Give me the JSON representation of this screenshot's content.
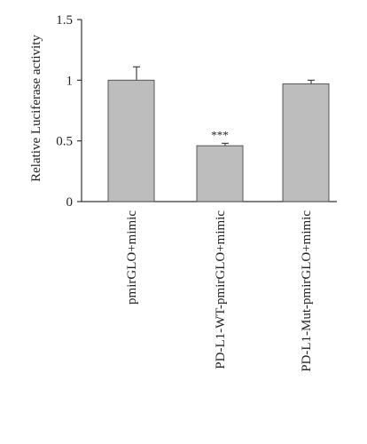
{
  "chart_data": {
    "type": "bar",
    "title": "",
    "xlabel": "",
    "ylabel": "Relative Luciferase activity",
    "ylim": [
      0,
      1.5
    ],
    "yticks": [
      0,
      0.5,
      1,
      1.5
    ],
    "ytick_labels": [
      "0",
      "0.5",
      "1",
      "1.5"
    ],
    "grid": false,
    "categories": [
      "pmirGLO+mimic",
      "PD-L1-WT-pmirGLO+mimic",
      "PD-L1-Mut-pmirGLO+mimic"
    ],
    "values": [
      1.0,
      0.46,
      0.97
    ],
    "errors": [
      0.11,
      0.02,
      0.03
    ],
    "annotations": [
      "",
      "***",
      ""
    ],
    "colors": {
      "bar_fill": "#bdbdbd",
      "bar_stroke": "#555555",
      "axis": "#333333"
    }
  }
}
